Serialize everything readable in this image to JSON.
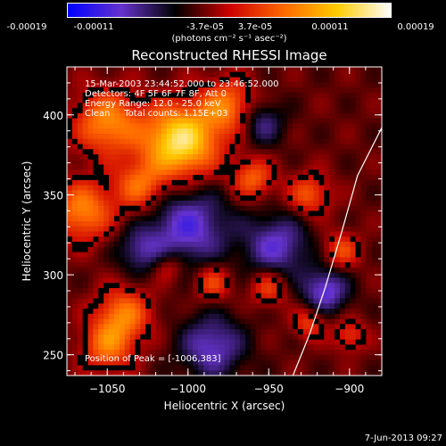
{
  "colorbar": {
    "tick_labels": [
      "-0.00019",
      "-0.00011",
      "-3.7e-05",
      "3.7e-05",
      "0.00011",
      "0.00019"
    ],
    "unit": "(photons cm⁻² s⁻¹ asec⁻²)",
    "range": [
      -0.00019,
      0.00019
    ]
  },
  "annotations": {
    "line1": "15-Mar-2003 23:44:52.000 to 23:46:52.000",
    "line2": "Detectors: 4F 5F 6F 7F 8F, Att 0",
    "line3": "Energy Range: 12.0 - 25.0 keV",
    "line4": "Clean     Total counts: 1.15E+03",
    "peak": "Position of Peak = [-1006,383]"
  },
  "footer": {
    "date": "7-Jun-2013 09:27"
  },
  "colors": {
    "background": "#000000",
    "foreground": "#ffffff",
    "colormap": [
      "#0000ff",
      "#6633cc",
      "#000000",
      "#cc0000",
      "#ff6600",
      "#ffcc00",
      "#ffffff"
    ]
  },
  "chart_data": {
    "type": "heatmap",
    "title": "Reconstructed RHESSI Image",
    "xlabel": "Heliocentric X (arcsec)",
    "ylabel": "Heliocentric Y (arcsec)",
    "xlim": [
      -1075,
      -880
    ],
    "ylim": [
      237,
      430
    ],
    "xticks": [
      -1050,
      -1000,
      -950,
      -900
    ],
    "xtick_labels": [
      "−1050",
      "−1000",
      "−950",
      "−900"
    ],
    "yticks": [
      250,
      300,
      350,
      400
    ],
    "ytick_labels": [
      "250",
      "300",
      "350",
      "400"
    ],
    "peak": [
      -1006,
      383
    ],
    "limb_curve": [
      [
        -935,
        237
      ],
      [
        -925,
        262
      ],
      [
        -915,
        292
      ],
      [
        -905,
        326
      ],
      [
        -895,
        362
      ],
      [
        -880,
        392
      ]
    ],
    "sources": [
      {
        "x": -1005,
        "y": 383,
        "amp": 1.0,
        "r": 16
      },
      {
        "x": -1050,
        "y": 395,
        "amp": 0.62,
        "r": 14
      },
      {
        "x": -975,
        "y": 405,
        "amp": 0.55,
        "r": 12
      },
      {
        "x": -1065,
        "y": 340,
        "amp": 0.6,
        "r": 13
      },
      {
        "x": -1030,
        "y": 355,
        "amp": 0.5,
        "r": 11
      },
      {
        "x": -1040,
        "y": 275,
        "amp": 0.55,
        "r": 12
      },
      {
        "x": -1050,
        "y": 255,
        "amp": 0.5,
        "r": 11
      },
      {
        "x": -960,
        "y": 360,
        "amp": 0.48,
        "r": 9
      },
      {
        "x": -925,
        "y": 350,
        "amp": 0.45,
        "r": 9
      },
      {
        "x": -905,
        "y": 315,
        "amp": 0.4,
        "r": 8
      },
      {
        "x": -985,
        "y": 295,
        "amp": 0.42,
        "r": 8
      },
      {
        "x": -950,
        "y": 292,
        "amp": 0.4,
        "r": 8
      },
      {
        "x": -925,
        "y": 270,
        "amp": 0.38,
        "r": 7
      },
      {
        "x": -900,
        "y": 262,
        "amp": 0.35,
        "r": 7
      },
      {
        "x": -1012,
        "y": 305,
        "amp": 0.3,
        "r": 7
      }
    ],
    "negative_regions": [
      {
        "x": -1000,
        "y": 330,
        "amp": 0.55,
        "r": 18
      },
      {
        "x": -945,
        "y": 318,
        "amp": 0.5,
        "r": 14
      },
      {
        "x": -985,
        "y": 255,
        "amp": 0.5,
        "r": 14
      },
      {
        "x": -955,
        "y": 395,
        "amp": 0.4,
        "r": 10
      },
      {
        "x": -915,
        "y": 290,
        "amp": 0.55,
        "r": 10
      },
      {
        "x": -1030,
        "y": 315,
        "amp": 0.35,
        "r": 10
      }
    ]
  }
}
